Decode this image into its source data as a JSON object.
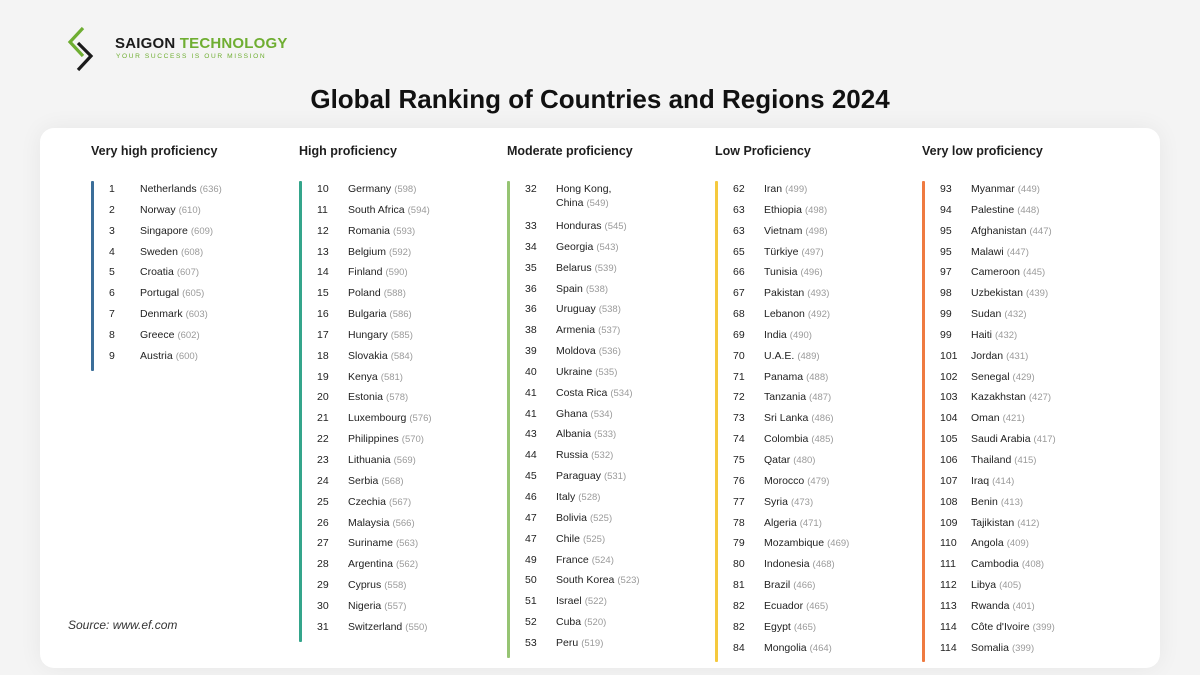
{
  "brand": {
    "name_part1": "SAIGON",
    "name_part2": "TECHNOLOGY",
    "tagline": "YOUR SUCCESS IS OUR MISSION"
  },
  "title": "Global Ranking of Countries and Regions 2024",
  "source": "Source: www.ef.com",
  "colors": {
    "very_high": "#3b6e99",
    "high": "#34a58b",
    "moderate": "#96c473",
    "low": "#f5c93e",
    "very_low": "#ef7a40"
  },
  "columns": [
    {
      "heading": "Very high proficiency",
      "rows": [
        {
          "rank": "1",
          "name": "Netherlands",
          "score": "(636)"
        },
        {
          "rank": "2",
          "name": "Norway",
          "score": "(610)"
        },
        {
          "rank": "3",
          "name": "Singapore",
          "score": "(609)"
        },
        {
          "rank": "4",
          "name": "Sweden",
          "score": "(608)"
        },
        {
          "rank": "5",
          "name": "Croatia",
          "score": "(607)"
        },
        {
          "rank": "6",
          "name": "Portugal",
          "score": "(605)"
        },
        {
          "rank": "7",
          "name": "Denmark",
          "score": "(603)"
        },
        {
          "rank": "8",
          "name": "Greece",
          "score": "(602)"
        },
        {
          "rank": "9",
          "name": "Austria",
          "score": "(600)"
        }
      ]
    },
    {
      "heading": "High proficiency",
      "rows": [
        {
          "rank": "10",
          "name": "Germany",
          "score": "(598)"
        },
        {
          "rank": "11",
          "name": "South Africa",
          "score": "(594)"
        },
        {
          "rank": "12",
          "name": "Romania",
          "score": "(593)"
        },
        {
          "rank": "13",
          "name": "Belgium",
          "score": "(592)"
        },
        {
          "rank": "14",
          "name": "Finland",
          "score": "(590)"
        },
        {
          "rank": "15",
          "name": "Poland",
          "score": "(588)"
        },
        {
          "rank": "16",
          "name": "Bulgaria",
          "score": "(586)"
        },
        {
          "rank": "17",
          "name": "Hungary",
          "score": "(585)"
        },
        {
          "rank": "18",
          "name": "Slovakia",
          "score": "(584)"
        },
        {
          "rank": "19",
          "name": "Kenya",
          "score": "(581)"
        },
        {
          "rank": "20",
          "name": "Estonia",
          "score": "(578)"
        },
        {
          "rank": "21",
          "name": "Luxembourg",
          "score": "(576)"
        },
        {
          "rank": "22",
          "name": "Philippines",
          "score": "(570)"
        },
        {
          "rank": "23",
          "name": "Lithuania",
          "score": "(569)"
        },
        {
          "rank": "24",
          "name": "Serbia",
          "score": "(568)"
        },
        {
          "rank": "25",
          "name": "Czechia",
          "score": "(567)"
        },
        {
          "rank": "26",
          "name": "Malaysia",
          "score": "(566)"
        },
        {
          "rank": "27",
          "name": "Suriname",
          "score": "(563)"
        },
        {
          "rank": "28",
          "name": "Argentina",
          "score": "(562)"
        },
        {
          "rank": "29",
          "name": "Cyprus",
          "score": "(558)"
        },
        {
          "rank": "30",
          "name": "Nigeria",
          "score": "(557)"
        },
        {
          "rank": "31",
          "name": "Switzerland",
          "score": "(550)"
        }
      ]
    },
    {
      "heading": "Moderate proficiency",
      "rows": [
        {
          "rank": "32",
          "name": "Hong Kong,",
          "name2": "China",
          "score": "(549)"
        },
        {
          "rank": "33",
          "name": "Honduras",
          "score": "(545)"
        },
        {
          "rank": "34",
          "name": "Georgia",
          "score": "(543)"
        },
        {
          "rank": "35",
          "name": "Belarus",
          "score": "(539)"
        },
        {
          "rank": "36",
          "name": "Spain",
          "score": "(538)"
        },
        {
          "rank": "36",
          "name": "Uruguay",
          "score": "(538)"
        },
        {
          "rank": "38",
          "name": "Armenia",
          "score": "(537)"
        },
        {
          "rank": "39",
          "name": "Moldova",
          "score": "(536)"
        },
        {
          "rank": "40",
          "name": "Ukraine",
          "score": "(535)"
        },
        {
          "rank": "41",
          "name": "Costa Rica",
          "score": "(534)"
        },
        {
          "rank": "41",
          "name": "Ghana",
          "score": "(534)"
        },
        {
          "rank": "43",
          "name": "Albania",
          "score": "(533)"
        },
        {
          "rank": "44",
          "name": "Russia",
          "score": "(532)"
        },
        {
          "rank": "45",
          "name": "Paraguay",
          "score": "(531)"
        },
        {
          "rank": "46",
          "name": "Italy",
          "score": "(528)"
        },
        {
          "rank": "47",
          "name": "Bolivia",
          "score": "(525)"
        },
        {
          "rank": "47",
          "name": "Chile",
          "score": "(525)"
        },
        {
          "rank": "49",
          "name": "France",
          "score": "(524)"
        },
        {
          "rank": "50",
          "name": "South Korea",
          "score": "(523)"
        },
        {
          "rank": "51",
          "name": "Israel",
          "score": "(522)"
        },
        {
          "rank": "52",
          "name": "Cuba",
          "score": "(520)"
        },
        {
          "rank": "53",
          "name": "Peru",
          "score": "(519)"
        }
      ]
    },
    {
      "heading": "Low Proficiency",
      "rows": [
        {
          "rank": "62",
          "name": "Iran",
          "score": "(499)"
        },
        {
          "rank": "63",
          "name": "Ethiopia",
          "score": "(498)"
        },
        {
          "rank": "63",
          "name": "Vietnam",
          "score": "(498)"
        },
        {
          "rank": "65",
          "name": "Türkiye",
          "score": "(497)"
        },
        {
          "rank": "66",
          "name": "Tunisia",
          "score": "(496)"
        },
        {
          "rank": "67",
          "name": "Pakistan",
          "score": "(493)"
        },
        {
          "rank": "68",
          "name": "Lebanon",
          "score": "(492)"
        },
        {
          "rank": "69",
          "name": "India",
          "score": "(490)"
        },
        {
          "rank": "70",
          "name": "U.A.E.",
          "score": "(489)"
        },
        {
          "rank": "71",
          "name": "Panama",
          "score": "(488)"
        },
        {
          "rank": "72",
          "name": "Tanzania",
          "score": "(487)"
        },
        {
          "rank": "73",
          "name": "Sri Lanka",
          "score": "(486)"
        },
        {
          "rank": "74",
          "name": "Colombia",
          "score": "(485)"
        },
        {
          "rank": "75",
          "name": "Qatar",
          "score": "(480)"
        },
        {
          "rank": "76",
          "name": "Morocco",
          "score": "(479)"
        },
        {
          "rank": "77",
          "name": "Syria",
          "score": "(473)"
        },
        {
          "rank": "78",
          "name": "Algeria",
          "score": "(471)"
        },
        {
          "rank": "79",
          "name": "Mozambique",
          "score": "(469)"
        },
        {
          "rank": "80",
          "name": "Indonesia",
          "score": "(468)"
        },
        {
          "rank": "81",
          "name": "Brazil",
          "score": "(466)"
        },
        {
          "rank": "82",
          "name": "Ecuador",
          "score": "(465)"
        },
        {
          "rank": "82",
          "name": "Egypt",
          "score": "(465)"
        },
        {
          "rank": "84",
          "name": "Mongolia",
          "score": "(464)"
        }
      ]
    },
    {
      "heading": "Very low proficiency",
      "rows": [
        {
          "rank": "93",
          "name": "Myanmar",
          "score": "(449)"
        },
        {
          "rank": "94",
          "name": "Palestine",
          "score": "(448)"
        },
        {
          "rank": "95",
          "name": "Afghanistan",
          "score": "(447)"
        },
        {
          "rank": "95",
          "name": "Malawi",
          "score": "(447)"
        },
        {
          "rank": "97",
          "name": "Cameroon",
          "score": "(445)"
        },
        {
          "rank": "98",
          "name": "Uzbekistan",
          "score": "(439)"
        },
        {
          "rank": "99",
          "name": "Sudan",
          "score": "(432)"
        },
        {
          "rank": "99",
          "name": "Haiti",
          "score": "(432)"
        },
        {
          "rank": "101",
          "name": "Jordan",
          "score": "(431)"
        },
        {
          "rank": "102",
          "name": "Senegal",
          "score": "(429)"
        },
        {
          "rank": "103",
          "name": "Kazakhstan",
          "score": "(427)"
        },
        {
          "rank": "104",
          "name": "Oman",
          "score": "(421)"
        },
        {
          "rank": "105",
          "name": "Saudi Arabia",
          "score": "(417)"
        },
        {
          "rank": "106",
          "name": "Thailand",
          "score": "(415)"
        },
        {
          "rank": "107",
          "name": "Iraq",
          "score": "(414)"
        },
        {
          "rank": "108",
          "name": "Benin",
          "score": "(413)"
        },
        {
          "rank": "109",
          "name": "Tajikistan",
          "score": "(412)"
        },
        {
          "rank": "110",
          "name": "Angola",
          "score": "(409)"
        },
        {
          "rank": "111",
          "name": "Cambodia",
          "score": "(408)"
        },
        {
          "rank": "112",
          "name": "Libya",
          "score": "(405)"
        },
        {
          "rank": "113",
          "name": "Rwanda",
          "score": "(401)"
        },
        {
          "rank": "114",
          "name": "Côte d'Ivoire",
          "score": "(399)"
        },
        {
          "rank": "114",
          "name": "Somalia",
          "score": "(399)"
        }
      ]
    }
  ]
}
